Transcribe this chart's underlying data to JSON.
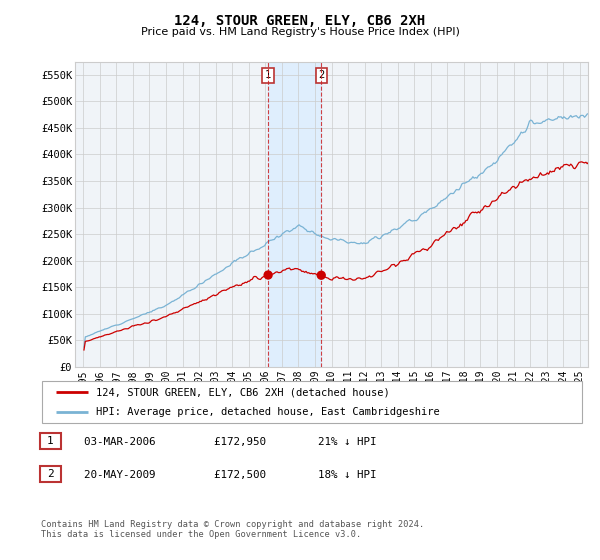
{
  "title": "124, STOUR GREEN, ELY, CB6 2XH",
  "subtitle": "Price paid vs. HM Land Registry's House Price Index (HPI)",
  "legend_entries": [
    "124, STOUR GREEN, ELY, CB6 2XH (detached house)",
    "HPI: Average price, detached house, East Cambridgeshire"
  ],
  "transactions": [
    {
      "label": "1",
      "date": "03-MAR-2006",
      "price": 172950,
      "price_str": "£172,950",
      "pct": "21%",
      "dir": "↓",
      "x": 2006.17
    },
    {
      "label": "2",
      "date": "20-MAY-2009",
      "price": 172500,
      "price_str": "£172,500",
      "pct": "18%",
      "dir": "↓",
      "x": 2009.38
    }
  ],
  "footer": "Contains HM Land Registry data © Crown copyright and database right 2024.\nThis data is licensed under the Open Government Licence v3.0.",
  "ylim": [
    0,
    575000
  ],
  "yticks": [
    0,
    50000,
    100000,
    150000,
    200000,
    250000,
    300000,
    350000,
    400000,
    450000,
    500000,
    550000
  ],
  "ytick_labels": [
    "£0",
    "£50K",
    "£100K",
    "£150K",
    "£200K",
    "£250K",
    "£300K",
    "£350K",
    "£400K",
    "£450K",
    "£500K",
    "£550K"
  ],
  "xlim": [
    1994.5,
    2025.5
  ],
  "xtick_years": [
    1995,
    1996,
    1997,
    1998,
    1999,
    2000,
    2001,
    2002,
    2003,
    2004,
    2005,
    2006,
    2007,
    2008,
    2009,
    2010,
    2011,
    2012,
    2013,
    2014,
    2015,
    2016,
    2017,
    2018,
    2019,
    2020,
    2021,
    2022,
    2023,
    2024,
    2025
  ],
  "hpi_color": "#7ab3d4",
  "price_color": "#cc0000",
  "marker_color": "#cc0000",
  "shade_color": "#ddeeff",
  "grid_color": "#cccccc",
  "background_color": "#f5f5f5",
  "chart_bg": "#f0f4f8"
}
